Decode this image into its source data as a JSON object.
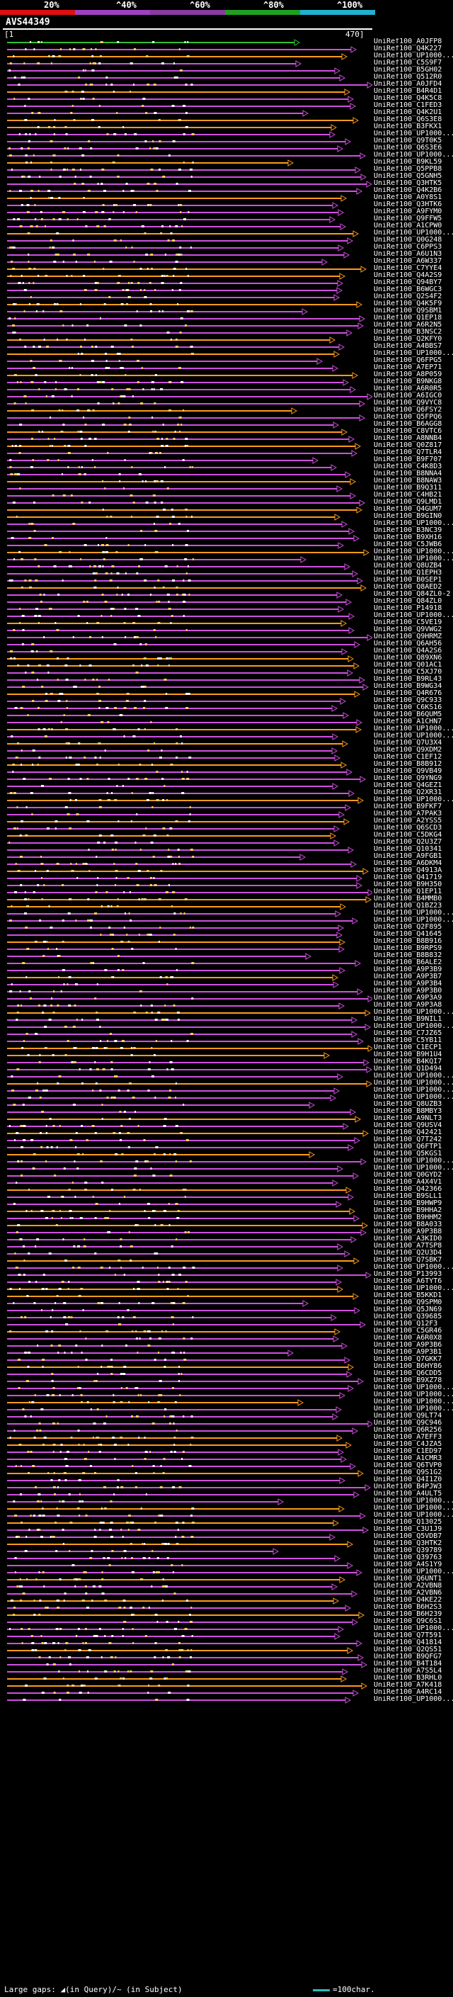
{
  "legend": {
    "labels": [
      "20%",
      "^40%",
      "^60%",
      "^80%",
      "^100%"
    ],
    "colors": [
      "#e01010",
      "#a040c0",
      "#8a3aa0",
      "#20a020",
      "#20b0d0"
    ]
  },
  "query": {
    "title": "AVS44349",
    "axis_start": "[1",
    "axis_end": "470]"
  },
  "hits": [
    "UniRef100_A0JFP8",
    "UniRef100_Q4K227",
    "UniRef100_UP1000...",
    "UniRef100_C5S9F7",
    "UniRef100_B5GH02",
    "UniRef100_Q512R0",
    "UniRef100_A0JFD4",
    "UniRef100_B4R4D1",
    "UniRef100_Q4K5C8",
    "UniRef100_C1FED3",
    "UniRef100_Q4K2U1",
    "UniRef100_Q6S3E8",
    "UniRef100_B3FKX1",
    "UniRef100_UP1000...",
    "UniRef100_Q9T0K5",
    "UniRef100_Q6S3E6",
    "UniRef100_UP1000...",
    "UniRef100_B9KL59",
    "UniRef100_Q5PPB8",
    "UniRef100_Q5GNH5",
    "UniRef100_Q3HTK5",
    "UniRef100_Q4K2B6",
    "UniRef100_A0Y8S1",
    "UniRef100_Q3HTK6",
    "UniRef100_A9FYM0",
    "UniRef100_Q9FFW5",
    "UniRef100_A1CPW0",
    "UniRef100_UP1000...",
    "UniRef100_Q0G248",
    "UniRef100_C6PPS3",
    "UniRef100_A6U1N3",
    "UniRef100_A6W337",
    "UniRef100_C7YYE4",
    "UniRef100_Q4A2S9",
    "UniRef100_Q94BY7",
    "UniRef100_B6WGC3",
    "UniRef100_Q2S4F2",
    "UniRef100_Q4K5F9",
    "UniRef100_Q9SBM1",
    "UniRef100_Q1EP18",
    "UniRef100_A6R2N5",
    "UniRef100_B3NSC2",
    "UniRef100_Q2KFY0",
    "UniRef100_A4BBS7",
    "UniRef100_UP1000...",
    "UniRef100_Q6FPG5",
    "UniRef100_A7EP71",
    "UniRef100_A8P059",
    "UniRef100_B9NKG8",
    "UniRef100_A6R0R5",
    "UniRef100_A6IGC0",
    "UniRef100_Q9VYC8",
    "UniRef100_Q6FSY2",
    "UniRef100_Q5FPQ6",
    "UniRef100_B6AGG8",
    "UniRef100_C8VTC6",
    "UniRef100_A8NNB4",
    "UniRef100_Q0Z817",
    "UniRef100_Q7TLR4",
    "UniRef100_B9F707",
    "UniRef100_C4K8D3",
    "UniRef100_B8NNA4",
    "UniRef100_B8NAW3",
    "UniRef100_B9Q311",
    "UniRef100_C4HB21",
    "UniRef100_Q9LMD1",
    "UniRef100_Q4GUM7",
    "UniRef100_B9GIN0",
    "UniRef100_UP1000...",
    "UniRef100_B3NC39",
    "UniRef100_B9XH16",
    "UniRef100_C5JWB6",
    "UniRef100_UP1000...",
    "UniRef100_UP1000...",
    "UniRef100_Q8UZB4",
    "UniRef100_Q1EPH3",
    "UniRef100_B0SEP1",
    "UniRef100_Q8AED2",
    "UniRef100_Q84ZL0-2",
    "UniRef100_Q84ZL0",
    "UniRef100_P14918",
    "UniRef100_UP1000...",
    "UniRef100_C5VE19",
    "UniRef100_Q9VWG2",
    "UniRef100_Q9HRMZ",
    "UniRef100_Q6AH56",
    "UniRef100_Q4A2S6",
    "UniRef100_Q89XN6",
    "UniRef100_Q01AC1",
    "UniRef100_C5XJ70",
    "UniRef100_B9RL43",
    "UniRef100_B9WG34",
    "UniRef100_Q4R676",
    "UniRef100_Q9C933",
    "UniRef100_C6KS16",
    "UniRef100_B6QUM5",
    "UniRef100_A1CHN7",
    "UniRef100_UP1000...",
    "UniRef100_UP1000...",
    "UniRef100_Q7U3X4",
    "UniRef100_Q9XDM2",
    "UniRef100_C1EF12",
    "UniRef100_B8B912",
    "UniRef100_Q9VB49",
    "UniRef100_Q9YNG9",
    "UniRef100_Q4GEZ1",
    "UniRef100_Q2XR31",
    "UniRef100_UP1000...",
    "UniRef100_B9FKF7",
    "UniRef100_A7PAK3",
    "UniRef100_A2YSS5",
    "UniRef100_Q6SCD3",
    "UniRef100_C5DKG4",
    "UniRef100_Q2U3Z7",
    "UniRef100_Q10341",
    "UniRef100_A9FGB1",
    "UniRef100_A6DKM4",
    "UniRef100_Q4913A",
    "UniRef100_Q41719",
    "UniRef100_B9H350",
    "UniRef100_Q1EP11",
    "UniRef100_B4MMB0",
    "UniRef100_Q1BZ23",
    "UniRef100_UP1000...",
    "UniRef100_UP1000...",
    "UniRef100_Q2F895",
    "UniRef100_Q41645",
    "UniRef100_B8B916",
    "UniRef100_B9RPS9",
    "UniRef100_B8B832",
    "UniRef100_B6ALE2",
    "UniRef100_A9P3B9",
    "UniRef100_A9P3B7",
    "UniRef100_A9P3B4",
    "UniRef100_A9P3B0",
    "UniRef100_A9P3A9",
    "UniRef100_A9P3A8",
    "UniRef100_UP1000...",
    "UniRef100_B9NIL1",
    "UniRef100_UP1000...",
    "UniRef100_C7JZ65",
    "UniRef100_C5YB11",
    "UniRef100_C1ECP1",
    "UniRef100_B9H1U4",
    "UniRef100_B4KQI7",
    "UniRef100_Q1D494",
    "UniRef100_UP1000...",
    "UniRef100_UP1000...",
    "UniRef100_UP1000...",
    "UniRef100_UP1000...",
    "UniRef100_Q8UZB3",
    "UniRef100_B8MBY3",
    "UniRef100_A9NLT3",
    "UniRef100_Q9USV4",
    "UniRef100_Q42421",
    "UniRef100_Q7T242",
    "UniRef100_Q6FTP1",
    "UniRef100_Q5KGS1",
    "UniRef100_UP1000...",
    "UniRef100_UP1000...",
    "UniRef100_Q0GYD2",
    "UniRef100_A4X4V1",
    "UniRef100_Q42366",
    "UniRef100_B9SLL1",
    "UniRef100_B9HWP9",
    "UniRef100_B9HHA2",
    "UniRef100_B9HHM2",
    "UniRef100_B8A033",
    "UniRef100_A9P3B8",
    "UniRef100_A3KID0",
    "UniRef100_A7TSP8",
    "UniRef100_Q2U3D4",
    "UniRef100_Q7SBK7",
    "UniRef100_UP1000...",
    "UniRef100_P13993",
    "UniRef100_A6TYT6",
    "UniRef100_UP1000...",
    "UniRef100_B5KKD1",
    "UniRef100_Q9SPM0",
    "UniRef100_Q5JN69",
    "UniRef100_Q39685",
    "UniRef100_Q12F3",
    "UniRef100_C5GR46",
    "UniRef100_A6R0X8",
    "UniRef100_A9P3B6",
    "UniRef100_A9P3B1",
    "UniRef100_Q7GKK7",
    "UniRef100_B6HY86",
    "UniRef100_Q6CDD5",
    "UniRef100_B9XZ78",
    "UniRef100_UP1000...",
    "UniRef100_UP1000...",
    "UniRef100_UP1000...",
    "UniRef100_UP1000...",
    "UniRef100_Q9LT74",
    "UniRef100_Q9C946",
    "UniRef100_Q6R256",
    "UniRef100_A7EFF3",
    "UniRef100_C4JZA5",
    "UniRef100_C1ED97",
    "UniRef100_A1CMR3",
    "UniRef100_Q6TVP0",
    "UniRef100_Q9S1G2",
    "UniRef100_Q4I1Z0",
    "UniRef100_B4PJW3",
    "UniRef100_A4ULT5",
    "UniRef100_UP1000...",
    "UniRef100_UP1000...",
    "UniRef100_UP1000...",
    "UniRef100_Q13025",
    "UniRef100_C3U1J9",
    "UniRef100_Q5VDB7",
    "UniRef100_Q3HTK2",
    "UniRef100_Q39789",
    "UniRef100_Q39763",
    "UniRef100_A4S1Y9",
    "UniRef100_UP1000...",
    "UniRef100_Q6UNT1",
    "UniRef100_A2VBN8",
    "UniRef100_A2VBN6",
    "UniRef100_Q4KE22",
    "UniRef100_B6H2S3",
    "UniRef100_B6H239",
    "UniRef100_Q9C6S1",
    "UniRef100_UP1000...",
    "UniRef100_Q7T591",
    "UniRef100_Q41814",
    "UniRef100_Q2QS51",
    "UniRef100_B9QFG7",
    "UniRef100_B4T184",
    "UniRef100_A7S5L4",
    "UniRef100_B3RHL0",
    "UniRef100_A7K418",
    "UniRef100_A4RC14",
    "UniRef100_UP1000..."
  ],
  "footer": {
    "gap_label": "Large gaps: ◢(in Query)/~ (in Subject)",
    "scale_label": "=100char."
  }
}
